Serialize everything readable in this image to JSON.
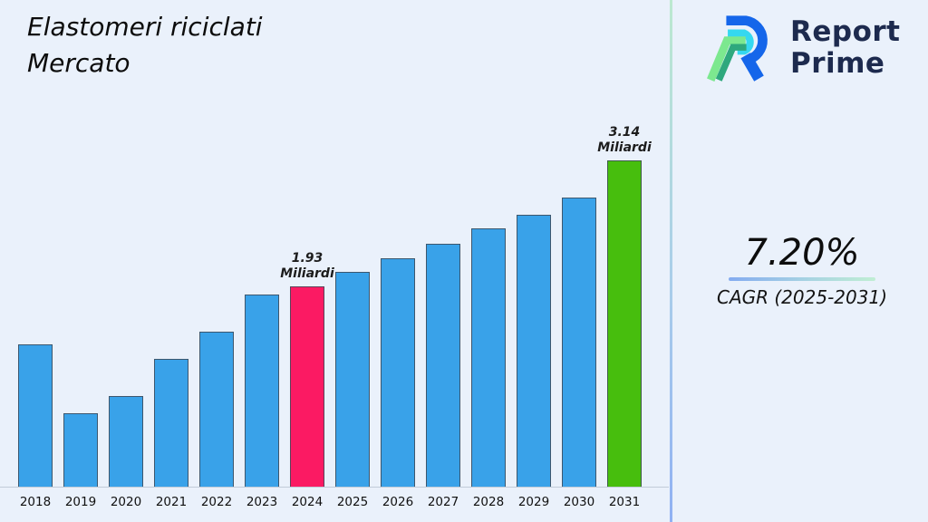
{
  "title": {
    "line1": "Elastomeri riciclati",
    "line2": "Mercato"
  },
  "brand": {
    "line1": "Report",
    "line2": "Prime",
    "logo_icon": "report-prime-r-logo",
    "text_color": "#1D2A4E"
  },
  "cagr": {
    "value": "7.20%",
    "label": "CAGR (2025-2031)"
  },
  "chart_data": {
    "type": "bar",
    "title": "Elastomeri riciclati Mercato",
    "xlabel": "",
    "ylabel": "",
    "unit": "Miliardi",
    "grid": false,
    "legend": "none",
    "axis_visible": "x-only",
    "categories": [
      "2018",
      "2019",
      "2020",
      "2021",
      "2022",
      "2023",
      "2024",
      "2025",
      "2026",
      "2027",
      "2028",
      "2029",
      "2030",
      "2031"
    ],
    "values": [
      1.37,
      0.71,
      0.87,
      1.23,
      1.49,
      1.85,
      1.93,
      2.07,
      2.2,
      2.34,
      2.49,
      2.62,
      2.79,
      3.14
    ],
    "ylim": [
      0,
      3.5
    ],
    "annotations": [
      {
        "category": "2024",
        "lines": [
          "1.93",
          "Miliardi"
        ]
      },
      {
        "category": "2031",
        "lines": [
          "3.14",
          "Miliardi"
        ]
      }
    ],
    "colors": {
      "default_bar": "#39A2E9",
      "highlight_2024": "#FB1A63",
      "highlight_2031": "#47BE0D",
      "bar_border": "#3E4A58",
      "background": "#EAF1FB"
    },
    "bar_color_keys": [
      "default_bar",
      "default_bar",
      "default_bar",
      "default_bar",
      "default_bar",
      "default_bar",
      "highlight_2024",
      "default_bar",
      "default_bar",
      "default_bar",
      "default_bar",
      "default_bar",
      "default_bar",
      "highlight_2031"
    ]
  }
}
